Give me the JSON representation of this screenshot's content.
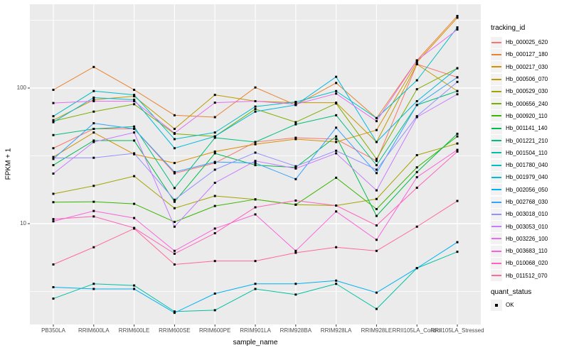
{
  "style": {
    "page_bg": "#FFFFFF",
    "panel_bg": "#EBEBEB",
    "grid_color": "#FFFFFF",
    "tick_text_color": "#4D4D4D",
    "axis_title_color": "#000000",
    "point_color": "#000000",
    "legend_key_bg": "#F2F2F2"
  },
  "chart_data": {
    "type": "line",
    "title": "",
    "xlabel": "sample_name",
    "ylabel": "FPKM + 1",
    "y_scale": "log10",
    "ylim": [
      1.8,
      420
    ],
    "y_ticks": [
      10,
      100
    ],
    "y_minor_breaks": [
      3.1623,
      31.623,
      316.23
    ],
    "grid": true,
    "legend_position": "right",
    "legend_title": "tracking_id",
    "legend2_title": "quant_status",
    "legend2_items": [
      {
        "label": "OK",
        "marker": "black-square"
      }
    ],
    "point_marker": "black-square",
    "x_categories": [
      "PB350LA",
      "RRIM600LA",
      "RRIM600LE",
      "RRIM600SE",
      "RRIM600PE",
      "RRIM901LA",
      "RRIM928BA",
      "RRIM928LA",
      "RRIM928LE",
      "RRII105LA_Control",
      "RRII105LA_Stressed"
    ],
    "series": [
      {
        "name": "Hb_000025_620",
        "color": "#F8766D",
        "values": [
          36,
          50,
          50,
          23.5,
          28,
          40,
          43,
          42,
          29,
          150,
          120
        ]
      },
      {
        "name": "Hb_000127_180",
        "color": "#EA8331",
        "values": [
          97,
          143,
          97,
          63,
          61,
          101,
          75,
          109,
          60,
          160,
          340
        ]
      },
      {
        "name": "Hb_000217_030",
        "color": "#D89000",
        "values": [
          31,
          47,
          32.5,
          28,
          34,
          38.5,
          42,
          40,
          49,
          155,
          330
        ]
      },
      {
        "name": "Hb_000506_070",
        "color": "#C09B00",
        "values": [
          58,
          82,
          87,
          50,
          89,
          80,
          78,
          78,
          40,
          150,
          95
        ]
      },
      {
        "name": "Hb_000529_030",
        "color": "#A3A500",
        "values": [
          16.6,
          19,
          22.4,
          13,
          16,
          15.1,
          13.8,
          13.6,
          15.2,
          32,
          39
        ]
      },
      {
        "name": "Hb_000656_240",
        "color": "#7CAE00",
        "values": [
          57,
          67,
          76,
          46,
          44,
          70,
          56,
          77,
          30,
          98,
          140
        ]
      },
      {
        "name": "Hb_000920_110",
        "color": "#39B600",
        "values": [
          14.4,
          14.5,
          14,
          10.3,
          13.5,
          15.1,
          13.8,
          21.8,
          12.8,
          26,
          44
        ]
      },
      {
        "name": "Hb_001141_140",
        "color": "#00BB4E",
        "values": [
          27,
          41,
          41,
          14.5,
          33,
          27,
          26,
          44,
          11.4,
          24,
          46
        ]
      },
      {
        "name": "Hb_001221_210",
        "color": "#00BF7D",
        "values": [
          45,
          50,
          52,
          18.3,
          43,
          40,
          54,
          63,
          27,
          75,
          95
        ]
      },
      {
        "name": "Hb_001504_110",
        "color": "#00C1A3",
        "values": [
          2.8,
          3.6,
          3.5,
          2.25,
          2.3,
          3.3,
          3.0,
          3.6,
          2.35,
          4.7,
          6.2
        ]
      },
      {
        "name": "Hb_001780_040",
        "color": "#00BFC4",
        "values": [
          62,
          95,
          89,
          42,
          47,
          73,
          79,
          95,
          60,
          114,
          280
        ]
      },
      {
        "name": "Hb_001979_040",
        "color": "#00BAE0",
        "values": [
          56,
          85,
          82,
          36,
          44,
          67,
          75,
          121,
          40,
          80,
          140
        ]
      },
      {
        "name": "Hb_002056_050",
        "color": "#00B0F6",
        "values": [
          3.4,
          3.3,
          3.3,
          2.2,
          3.05,
          3.6,
          3.6,
          3.8,
          3.1,
          4.7,
          7.3
        ]
      },
      {
        "name": "Hb_002768_030",
        "color": "#35A2FF",
        "values": [
          30,
          55,
          50,
          24,
          28.5,
          28,
          21.3,
          51,
          23.6,
          75,
          120
        ]
      },
      {
        "name": "Hb_003018_010",
        "color": "#9590FF",
        "values": [
          30.5,
          30.6,
          33,
          15,
          25,
          33.4,
          26.5,
          34.5,
          25,
          62,
          111
        ]
      },
      {
        "name": "Hb_003053_010",
        "color": "#C77CFF",
        "values": [
          23.4,
          40,
          47,
          9.5,
          20,
          29,
          25.5,
          33,
          17.6,
          61,
          90
        ]
      },
      {
        "name": "Hb_003226_100",
        "color": "#E76BF3",
        "values": [
          77.5,
          80,
          80,
          46.5,
          78,
          80,
          76,
          91,
          57,
          160,
          270
        ]
      },
      {
        "name": "Hb_003683_110",
        "color": "#FA62DB",
        "values": [
          10.4,
          12.4,
          11,
          6.3,
          9.2,
          11.7,
          6.3,
          12.3,
          7.6,
          22,
          35
        ]
      },
      {
        "name": "Hb_010068_020",
        "color": "#FF62BC",
        "values": [
          10.8,
          11.3,
          9.3,
          6.0,
          8.5,
          13.2,
          14.8,
          13.6,
          9.7,
          18.4,
          34
        ]
      },
      {
        "name": "Hb_011512_070",
        "color": "#FF6A98",
        "values": [
          5.0,
          6.7,
          9.2,
          5.0,
          5.3,
          5.3,
          6.1,
          6.7,
          6.3,
          9.5,
          14.7
        ]
      }
    ]
  }
}
